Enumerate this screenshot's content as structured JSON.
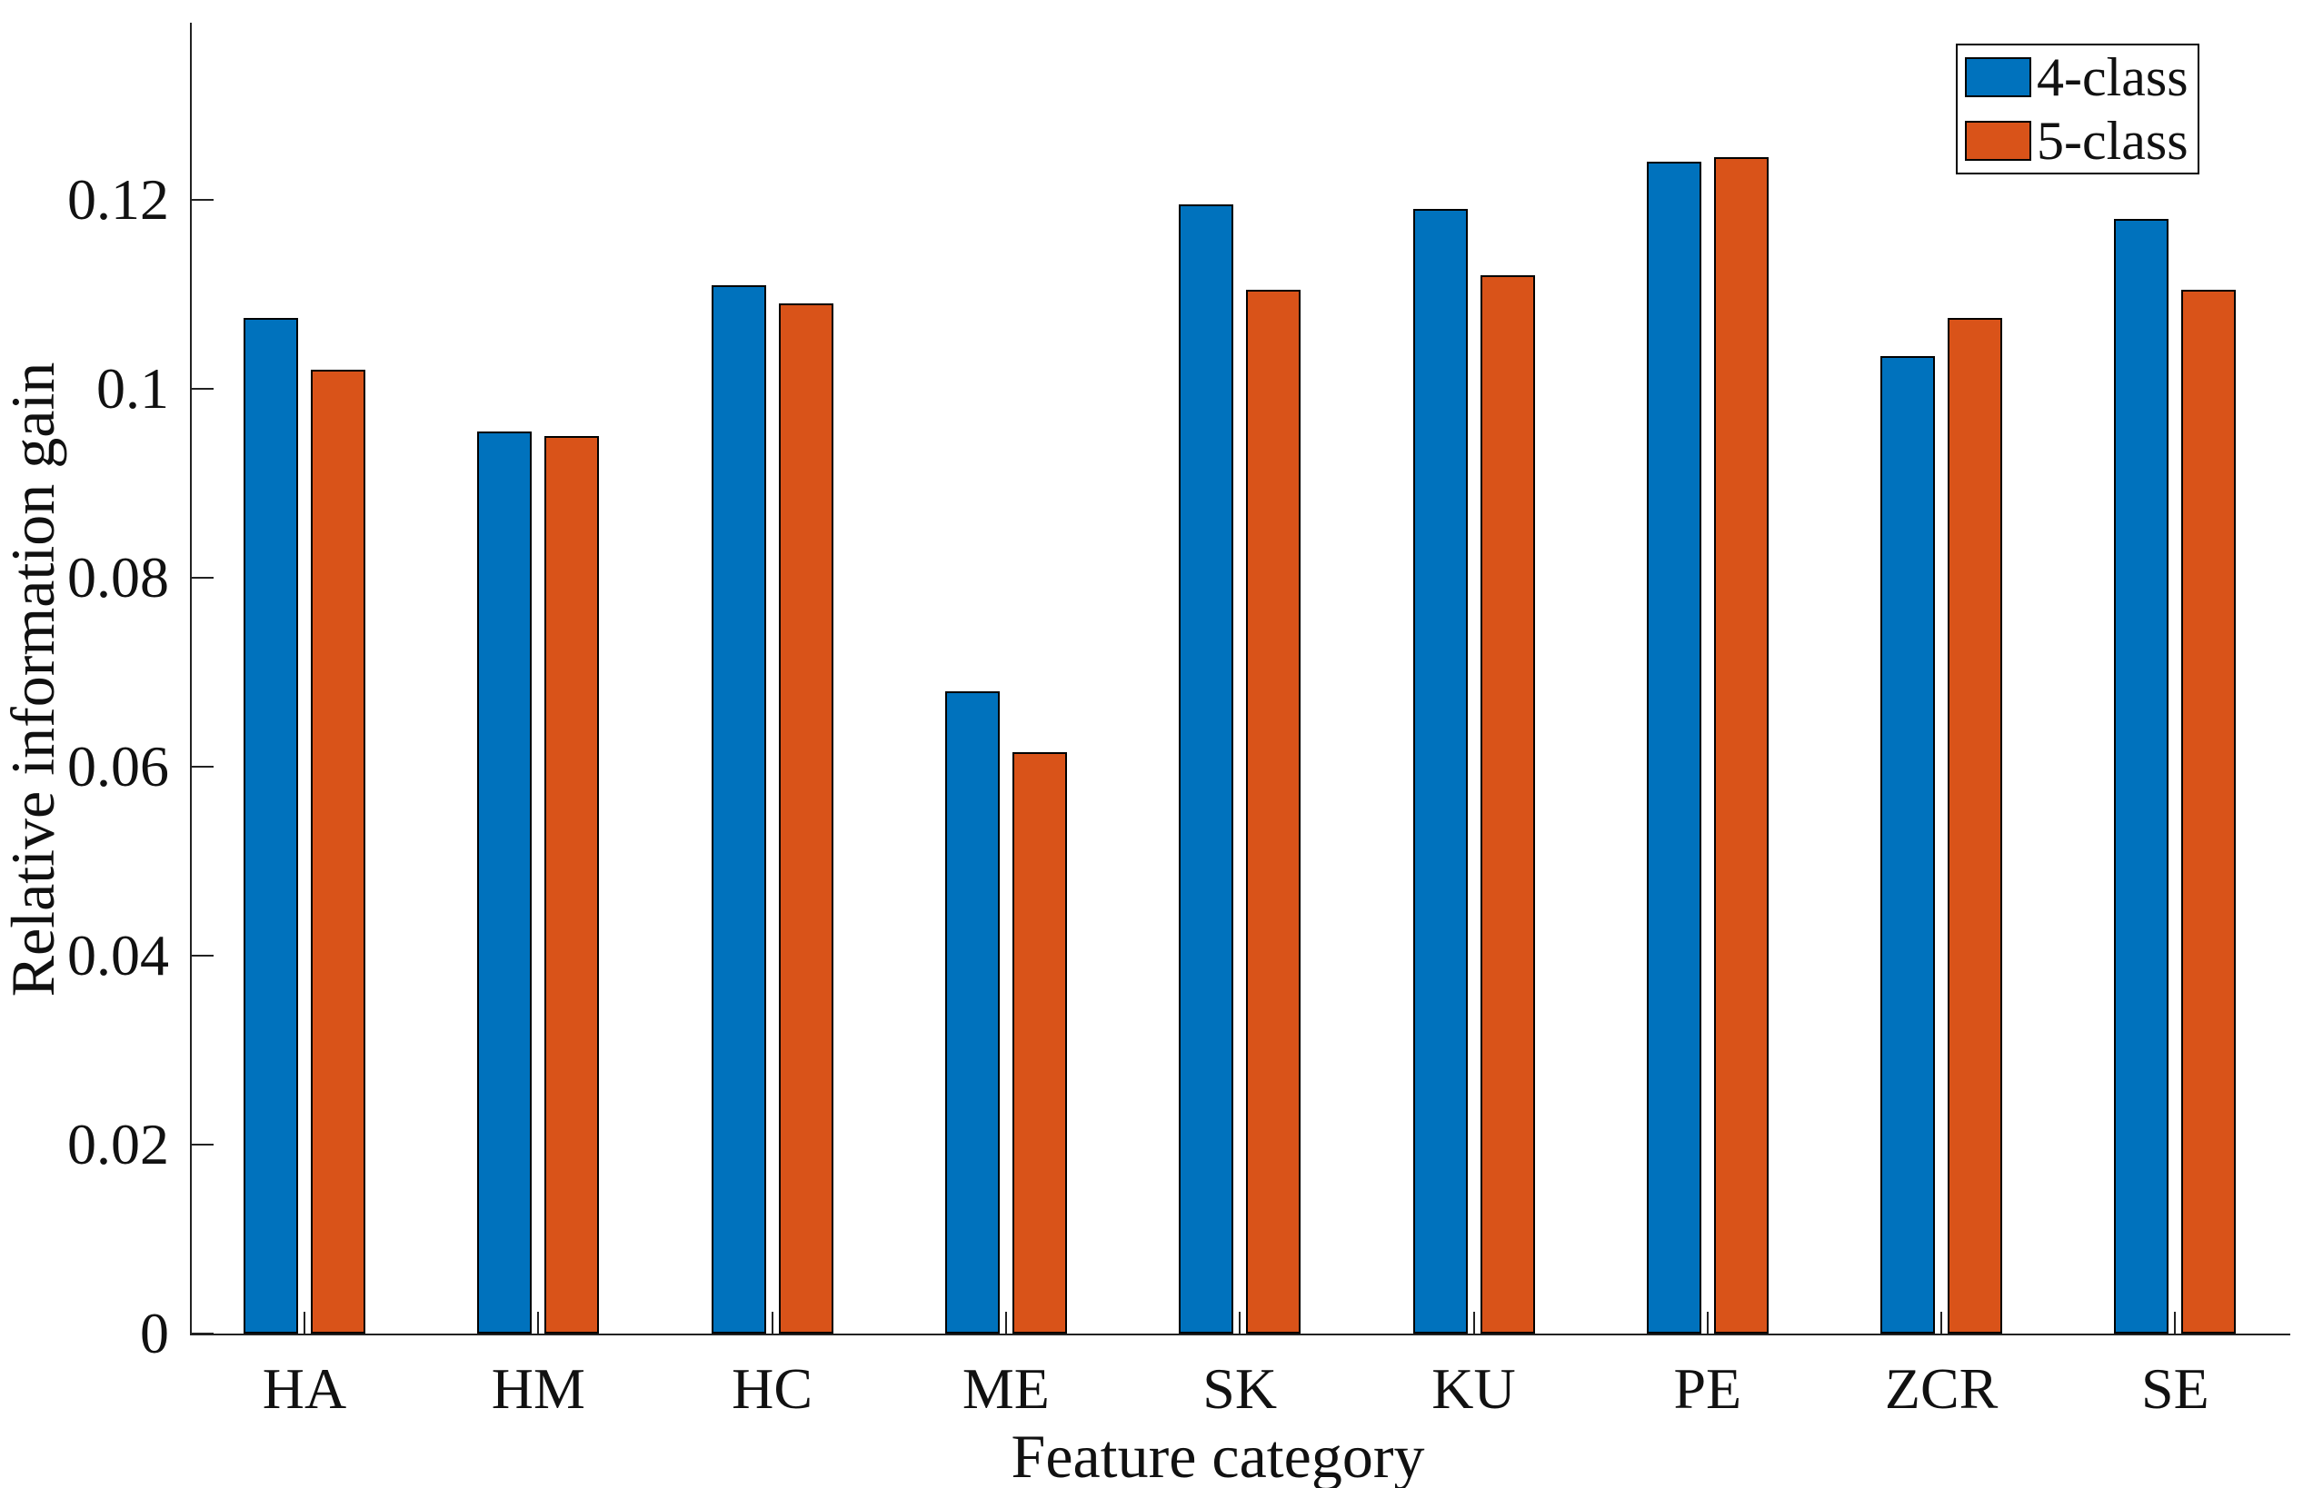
{
  "chart_data": {
    "type": "bar",
    "title": "",
    "xlabel": "Feature category",
    "ylabel": "Relative information gain",
    "categories": [
      "HA",
      "HM",
      "HC",
      "ME",
      "SK",
      "KU",
      "PE",
      "ZCR",
      "SE"
    ],
    "series": [
      {
        "name": "4-class",
        "color": "#0072BD",
        "values": [
          0.1075,
          0.0955,
          0.111,
          0.068,
          0.1195,
          0.119,
          0.124,
          0.1035,
          0.118
        ]
      },
      {
        "name": "5-class",
        "color": "#D95319",
        "values": [
          0.102,
          0.095,
          0.109,
          0.0615,
          0.1105,
          0.112,
          0.1245,
          0.1075,
          0.1105
        ]
      }
    ],
    "ylim": [
      0,
      0.13875
    ],
    "yticks": [
      0,
      0.02,
      0.04,
      0.06,
      0.08,
      0.1,
      0.12
    ],
    "ytick_labels": [
      "0",
      "0.02",
      "0.04",
      "0.06",
      "0.08",
      "0.1",
      "0.12"
    ],
    "legend_position": "top-right",
    "grid": false,
    "axis_color": "#222222",
    "bar_edge_color": "#000000"
  }
}
